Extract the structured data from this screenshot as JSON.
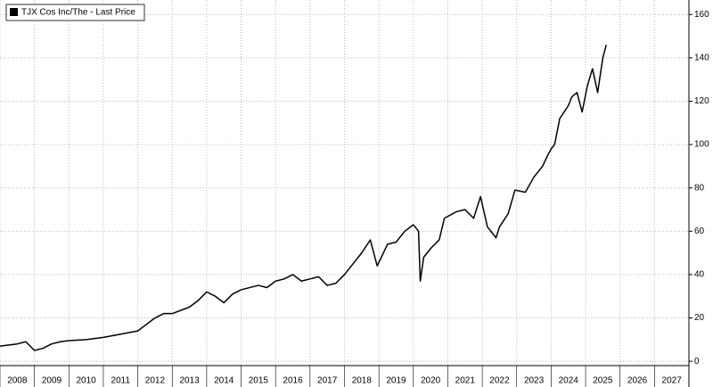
{
  "chart_data": {
    "type": "line",
    "legend": "TJX Cos Inc/The - Last Price",
    "legend_position": "upper left",
    "grid": true,
    "series": [
      {
        "name": "TJX Cos Inc/The - Last Price",
        "color": "#000000",
        "x": [
          2008.0,
          2008.5,
          2008.75,
          2009.0,
          2009.25,
          2009.5,
          2009.75,
          2010.0,
          2010.5,
          2011.0,
          2011.5,
          2012.0,
          2012.25,
          2012.5,
          2012.75,
          2013.0,
          2013.5,
          2013.75,
          2014.0,
          2014.25,
          2014.5,
          2014.75,
          2015.0,
          2015.5,
          2015.75,
          2016.0,
          2016.25,
          2016.5,
          2016.75,
          2017.0,
          2017.25,
          2017.5,
          2017.75,
          2018.0,
          2018.25,
          2018.5,
          2018.75,
          2018.95,
          2019.25,
          2019.5,
          2019.75,
          2020.0,
          2020.15,
          2020.2,
          2020.3,
          2020.5,
          2020.75,
          2020.9,
          2021.25,
          2021.5,
          2021.75,
          2021.95,
          2022.15,
          2022.4,
          2022.5,
          2022.75,
          2022.95,
          2023.25,
          2023.5,
          2023.75,
          2023.9,
          2024.0,
          2024.1,
          2024.25,
          2024.5,
          2024.6,
          2024.75,
          2024.9,
          2025.05,
          2025.2,
          2025.35,
          2025.5,
          2025.6
        ],
        "values": [
          7,
          8,
          9,
          5,
          6,
          8,
          9,
          9.5,
          10,
          11,
          12.5,
          14,
          17,
          20,
          22,
          22,
          25,
          28,
          32,
          30,
          27,
          31,
          33,
          35,
          34,
          37,
          38,
          40,
          37,
          38,
          39,
          35,
          36,
          40,
          45,
          50,
          56,
          44,
          54,
          55,
          60,
          63,
          60,
          37,
          48,
          52,
          56,
          66,
          69,
          70,
          66,
          76,
          62,
          57,
          62,
          68,
          79,
          78,
          85,
          90,
          95,
          98,
          100,
          112,
          118,
          122,
          124,
          115,
          127,
          135,
          124,
          140,
          146
        ]
      }
    ],
    "xlim": [
      2008,
      2028
    ],
    "xticks": [
      2008,
      2009,
      2010,
      2011,
      2012,
      2013,
      2014,
      2015,
      2016,
      2017,
      2018,
      2019,
      2020,
      2021,
      2022,
      2023,
      2024,
      2025,
      2026,
      2027
    ],
    "ylim": [
      -2,
      163
    ],
    "yticks": [
      0,
      20,
      40,
      60,
      80,
      100,
      120,
      140,
      160
    ]
  }
}
